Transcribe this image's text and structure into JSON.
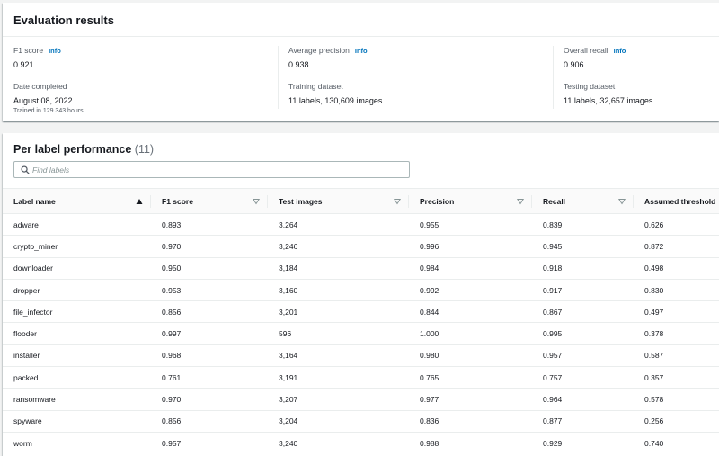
{
  "evaluation": {
    "title": "Evaluation results",
    "info_label": "Info",
    "metrics": [
      {
        "label": "F1 score",
        "value": "0.921",
        "has_info": true
      },
      {
        "label": "Average precision",
        "value": "0.938",
        "has_info": true
      },
      {
        "label": "Overall recall",
        "value": "0.906",
        "has_info": true
      }
    ],
    "details": [
      {
        "label": "Date completed",
        "value": "August 08, 2022",
        "sub": "Trained in 129.343 hours"
      },
      {
        "label": "Training dataset",
        "value": "11 labels, 130,609 images"
      },
      {
        "label": "Testing dataset",
        "value": "11 labels, 32,657 images"
      }
    ]
  },
  "performance": {
    "title": "Per label performance",
    "count": "(11)",
    "search": {
      "placeholder": "Find labels",
      "value": ""
    },
    "columns": [
      {
        "label": "Label name",
        "sort": "ascending"
      },
      {
        "label": "F1 score",
        "sort": "none"
      },
      {
        "label": "Test images",
        "sort": "none"
      },
      {
        "label": "Precision",
        "sort": "none"
      },
      {
        "label": "Recall",
        "sort": "none"
      },
      {
        "label": "Assumed threshold",
        "sort": "none"
      }
    ],
    "rows": [
      [
        "adware",
        "0.893",
        "3,264",
        "0.955",
        "0.839",
        "0.626"
      ],
      [
        "crypto_miner",
        "0.970",
        "3,246",
        "0.996",
        "0.945",
        "0.872"
      ],
      [
        "downloader",
        "0.950",
        "3,184",
        "0.984",
        "0.918",
        "0.498"
      ],
      [
        "dropper",
        "0.953",
        "3,160",
        "0.992",
        "0.917",
        "0.830"
      ],
      [
        "file_infector",
        "0.856",
        "3,201",
        "0.844",
        "0.867",
        "0.497"
      ],
      [
        "flooder",
        "0.997",
        "596",
        "1.000",
        "0.995",
        "0.378"
      ],
      [
        "installer",
        "0.968",
        "3,164",
        "0.980",
        "0.957",
        "0.587"
      ],
      [
        "packed",
        "0.761",
        "3,191",
        "0.765",
        "0.757",
        "0.357"
      ],
      [
        "ransomware",
        "0.970",
        "3,207",
        "0.977",
        "0.964",
        "0.578"
      ],
      [
        "spyware",
        "0.856",
        "3,204",
        "0.836",
        "0.877",
        "0.256"
      ],
      [
        "worm",
        "0.957",
        "3,240",
        "0.988",
        "0.929",
        "0.740"
      ]
    ]
  },
  "colors": {
    "link": "#0073bb",
    "background": "#f2f3f3",
    "text": "#16191f",
    "muted": "#545b64"
  }
}
